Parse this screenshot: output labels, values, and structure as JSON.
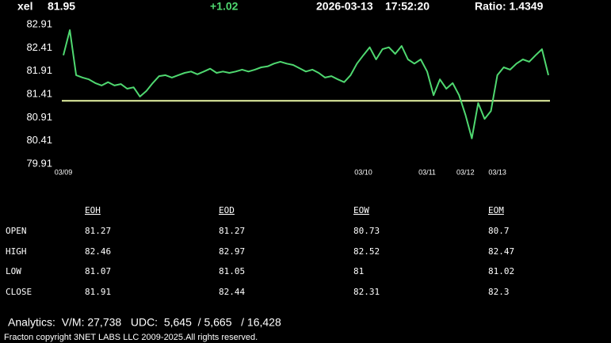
{
  "header": {
    "symbol": "xel",
    "price": 81.95,
    "change": "+1.02",
    "date": "2026-03-13",
    "time": "17:52:20",
    "ratio": "Ratio: 1.4349"
  },
  "chart_data": {
    "type": "line",
    "color": "#4fd870",
    "grid": false,
    "categories": [
      "03/09",
      null,
      null,
      null,
      null,
      null,
      null,
      null,
      null,
      null,
      null,
      null,
      null,
      null,
      null,
      null,
      null,
      null,
      null,
      null,
      null,
      null,
      null,
      null,
      null,
      null,
      null,
      null,
      null,
      null,
      null,
      null,
      null,
      null,
      null,
      null,
      null,
      null,
      null,
      null,
      null,
      null,
      null,
      null,
      null,
      null,
      null,
      "03/10",
      null,
      null,
      null,
      null,
      null,
      null,
      null,
      null,
      null,
      "03/11",
      null,
      null,
      null,
      null,
      null,
      "03/12",
      null,
      null,
      null,
      null,
      "03/13",
      null,
      null,
      null,
      null,
      null,
      null,
      null,
      null
    ],
    "values": [
      82.25,
      82.79,
      81.82,
      81.77,
      81.73,
      81.65,
      81.6,
      81.67,
      81.6,
      81.63,
      81.53,
      81.56,
      81.36,
      81.48,
      81.65,
      81.8,
      81.82,
      81.77,
      81.82,
      81.87,
      81.9,
      81.84,
      81.9,
      81.96,
      81.87,
      81.9,
      81.87,
      81.9,
      81.94,
      81.9,
      81.94,
      81.99,
      82.01,
      82.07,
      82.11,
      82.07,
      82.04,
      81.97,
      81.9,
      81.94,
      81.87,
      81.77,
      81.8,
      81.73,
      81.67,
      81.82,
      82.07,
      82.25,
      82.42,
      82.16,
      82.38,
      82.42,
      82.28,
      82.45,
      82.16,
      82.07,
      82.16,
      81.9,
      81.39,
      81.73,
      81.53,
      81.65,
      81.39,
      80.97,
      80.46,
      81.22,
      80.88,
      81.05,
      81.82,
      81.99,
      81.94,
      82.07,
      82.16,
      82.11,
      82.25,
      82.38,
      81.82
    ],
    "reference_line": 81.27,
    "reference_color": "#e8f5a4",
    "ylim": [
      79.91,
      82.91
    ],
    "yticks": [
      82.91,
      82.41,
      81.91,
      81.41,
      80.91,
      80.41,
      79.91
    ]
  },
  "table": {
    "columns": [
      "EOH",
      "EOD",
      "EOW",
      "EOM"
    ],
    "rows": [
      {
        "label": "OPEN",
        "values": [
          81.27,
          81.27,
          80.73,
          80.7
        ]
      },
      {
        "label": "HIGH",
        "values": [
          82.46,
          82.97,
          82.52,
          82.47
        ]
      },
      {
        "label": "LOW",
        "values": [
          81.07,
          81.05,
          81,
          81.02
        ]
      },
      {
        "label": "CLOSE",
        "values": [
          81.91,
          82.44,
          82.31,
          82.3
        ]
      }
    ]
  },
  "footer": {
    "analytics": "Analytics:  V/M: 27,738   UDC:  5,645  / 5,665   / 16,428",
    "copyright": "Fracton copyright 3NET LABS LLC 2009-2025.All rights reserved."
  }
}
